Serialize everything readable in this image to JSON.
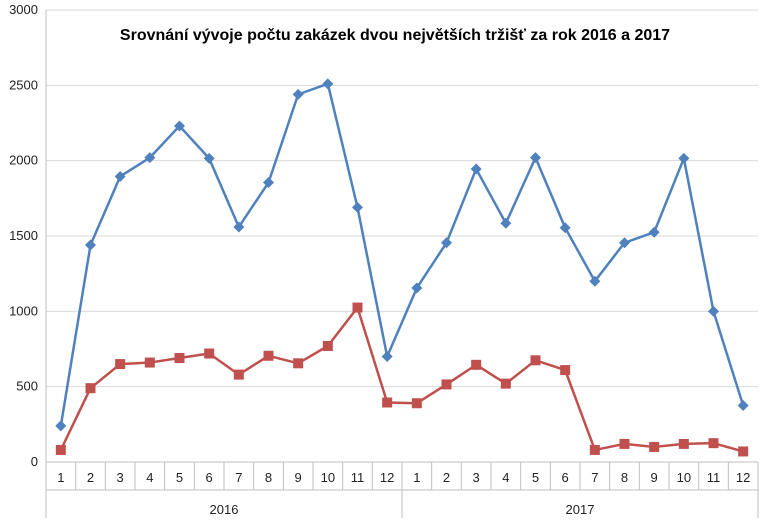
{
  "chart_data": {
    "type": "line",
    "title": "Srovnání vývoje počtu zakázek dvou největších tržišť za rok 2016 a 2017",
    "xlabel": "",
    "ylabel": "",
    "ylim": [
      0,
      3000
    ],
    "yticks": [
      "0",
      "500",
      "1000",
      "1500",
      "2000",
      "2500",
      "3000"
    ],
    "grid": true,
    "legend": "none",
    "categories": [
      "1",
      "2",
      "3",
      "4",
      "5",
      "6",
      "7",
      "8",
      "9",
      "10",
      "11",
      "12",
      "1",
      "2",
      "3",
      "4",
      "5",
      "6",
      "7",
      "8",
      "9",
      "10",
      "11",
      "12"
    ],
    "groups": [
      {
        "label": "2016",
        "count": 12
      },
      {
        "label": "2017",
        "count": 12
      }
    ],
    "series": [
      {
        "color": "#4f81bd",
        "marker": "diamond",
        "values": [
          240,
          1440,
          1895,
          2020,
          2230,
          2015,
          1560,
          1855,
          2440,
          2510,
          1690,
          700,
          1155,
          1455,
          1945,
          1585,
          2020,
          1555,
          1200,
          1455,
          1525,
          2015,
          1000,
          375
        ]
      },
      {
        "color": "#c0504d",
        "marker": "square",
        "values": [
          80,
          490,
          650,
          660,
          690,
          720,
          580,
          705,
          655,
          770,
          1025,
          395,
          390,
          515,
          645,
          520,
          675,
          610,
          80,
          120,
          100,
          120,
          125,
          70
        ]
      }
    ]
  }
}
